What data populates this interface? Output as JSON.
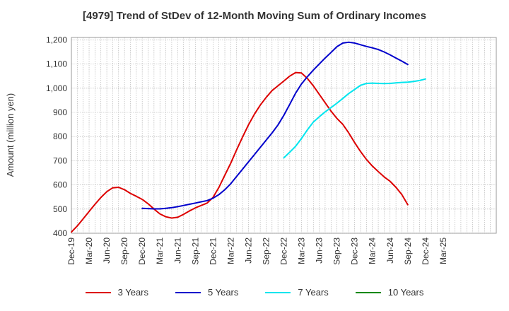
{
  "chart_data": {
    "type": "line",
    "title": "[4979]  Trend of StDev of 12-Month Moving Sum of Ordinary Incomes",
    "xlabel": "",
    "ylabel": "Amount (million yen)",
    "ylim": [
      400,
      1210
    ],
    "yticks": [
      400,
      500,
      600,
      700,
      800,
      900,
      1000,
      1100,
      1200
    ],
    "ytick_labels": [
      "400",
      "500",
      "600",
      "700",
      "800",
      "900",
      "1,000",
      "1,100",
      "1,200"
    ],
    "x_range_months": [
      0,
      72
    ],
    "xticks": [
      {
        "label": "Dec-19",
        "month": 0
      },
      {
        "label": "Mar-20",
        "month": 3
      },
      {
        "label": "Jun-20",
        "month": 6
      },
      {
        "label": "Sep-20",
        "month": 9
      },
      {
        "label": "Dec-20",
        "month": 12
      },
      {
        "label": "Mar-21",
        "month": 15
      },
      {
        "label": "Jun-21",
        "month": 18
      },
      {
        "label": "Sep-21",
        "month": 21
      },
      {
        "label": "Dec-21",
        "month": 24
      },
      {
        "label": "Mar-22",
        "month": 27
      },
      {
        "label": "Jun-22",
        "month": 30
      },
      {
        "label": "Sep-22",
        "month": 33
      },
      {
        "label": "Dec-22",
        "month": 36
      },
      {
        "label": "Mar-23",
        "month": 39
      },
      {
        "label": "Jun-23",
        "month": 42
      },
      {
        "label": "Sep-23",
        "month": 45
      },
      {
        "label": "Dec-23",
        "month": 48
      },
      {
        "label": "Mar-24",
        "month": 51
      },
      {
        "label": "Jun-24",
        "month": 54
      },
      {
        "label": "Sep-24",
        "month": 57
      },
      {
        "label": "Dec-24",
        "month": 60
      },
      {
        "label": "Mar-25",
        "month": 63
      }
    ],
    "x_note": "month index 0 = Dec-19; monthly points",
    "grid": true,
    "legend_position": "bottom",
    "series": [
      {
        "name": "3 Years",
        "color": "#dd0000",
        "start_month": 0,
        "values": [
          405,
          430,
          460,
          490,
          520,
          548,
          572,
          588,
          590,
          580,
          565,
          553,
          540,
          522,
          500,
          480,
          468,
          463,
          466,
          478,
          492,
          505,
          515,
          525,
          548,
          590,
          640,
          690,
          745,
          798,
          848,
          892,
          930,
          962,
          990,
          1010,
          1030,
          1050,
          1065,
          1063,
          1040,
          1010,
          975,
          940,
          905,
          875,
          850,
          815,
          775,
          738,
          705,
          678,
          655,
          633,
          615,
          590,
          560,
          518
        ]
      },
      {
        "name": "5 Years",
        "color": "#0000cc",
        "start_month": 12,
        "values": [
          503,
          502,
          501,
          501,
          503,
          506,
          510,
          515,
          520,
          525,
          530,
          535,
          545,
          560,
          580,
          605,
          635,
          665,
          695,
          725,
          755,
          785,
          815,
          848,
          888,
          933,
          980,
          1018,
          1048,
          1075,
          1100,
          1125,
          1148,
          1172,
          1187,
          1190,
          1187,
          1180,
          1173,
          1167,
          1160,
          1150,
          1138,
          1125,
          1112,
          1098
        ]
      },
      {
        "name": "7 Years",
        "color": "#00e5ee",
        "start_month": 36,
        "values": [
          712,
          735,
          760,
          792,
          828,
          860,
          882,
          902,
          920,
          938,
          958,
          978,
          995,
          1012,
          1020,
          1021,
          1020,
          1019,
          1020,
          1022,
          1024,
          1025,
          1028,
          1032,
          1038
        ]
      },
      {
        "name": "10 Years",
        "color": "#008800",
        "start_month": 0,
        "values": []
      }
    ]
  }
}
